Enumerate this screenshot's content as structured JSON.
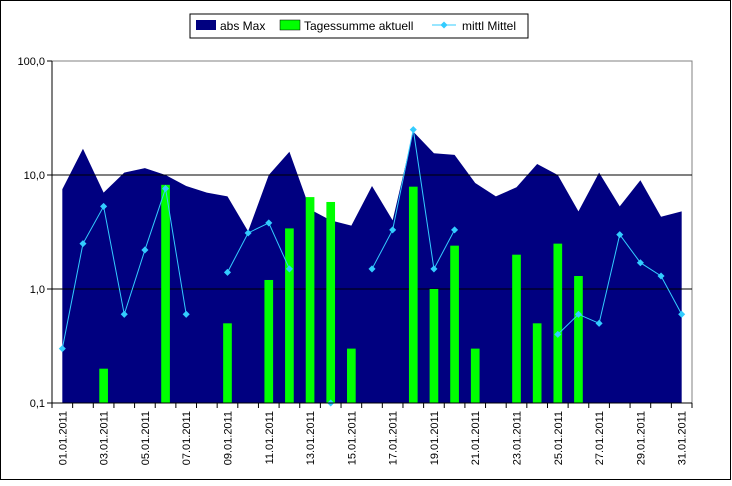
{
  "chart_data": {
    "type": "bar",
    "y_scale": "log",
    "ylim": [
      0.1,
      100
    ],
    "y_ticks": [
      {
        "value": 0.1,
        "label": "0,1"
      },
      {
        "value": 1,
        "label": "1,0"
      },
      {
        "value": 10,
        "label": "10,0"
      },
      {
        "value": 100,
        "label": "100,0"
      }
    ],
    "grid": "horizontal major lines at 1 and 10",
    "legend_position": "top-center",
    "x": [
      "01.01.2011",
      "02.01.2011",
      "03.01.2011",
      "04.01.2011",
      "05.01.2011",
      "06.01.2011",
      "07.01.2011",
      "08.01.2011",
      "09.01.2011",
      "10.01.2011",
      "11.01.2011",
      "12.01.2011",
      "13.01.2011",
      "14.01.2011",
      "15.01.2011",
      "16.01.2011",
      "17.01.2011",
      "18.01.2011",
      "19.01.2011",
      "20.01.2011",
      "21.01.2011",
      "22.01.2011",
      "23.01.2011",
      "24.01.2011",
      "25.01.2011",
      "26.01.2011",
      "27.01.2011",
      "28.01.2011",
      "29.01.2011",
      "30.01.2011",
      "31.01.2011"
    ],
    "x_tick_labels": [
      "01.01.2011",
      "03.01.2011",
      "05.01.2011",
      "07.01.2011",
      "09.01.2011",
      "11.01.2011",
      "13.01.2011",
      "15.01.2011",
      "17.01.2011",
      "19.01.2011",
      "21.01.2011",
      "23.01.2011",
      "25.01.2011",
      "27.01.2011",
      "29.01.2011",
      "31.01.2011"
    ],
    "series": [
      {
        "name": "abs Max",
        "type": "area",
        "color": "#000080",
        "values": [
          7.5,
          17,
          7,
          10.5,
          11.5,
          10,
          8,
          7,
          6.5,
          3.2,
          10,
          16,
          5,
          4,
          3.6,
          8,
          4,
          24,
          15.5,
          15,
          8.5,
          6.5,
          7.8,
          12.5,
          10,
          4.8,
          10.5,
          5.3,
          9,
          4.3,
          4.8
        ]
      },
      {
        "name": "Tagessumme aktuell",
        "type": "bar",
        "color": "#00ff00",
        "values": [
          null,
          null,
          0.2,
          null,
          null,
          8.2,
          null,
          null,
          0.5,
          null,
          1.2,
          3.4,
          6.4,
          5.8,
          0.3,
          null,
          null,
          7.9,
          1.0,
          2.4,
          0.3,
          null,
          2.0,
          0.5,
          2.5,
          1.3,
          null,
          null,
          null,
          null,
          null
        ]
      },
      {
        "name": "mittl Mittel",
        "type": "line",
        "color": "#33ccff",
        "values": [
          0.3,
          2.5,
          5.3,
          0.6,
          2.2,
          7.6,
          0.6,
          null,
          1.4,
          3.1,
          3.8,
          1.5,
          null,
          0.1,
          null,
          1.5,
          3.3,
          25,
          1.5,
          3.3,
          null,
          null,
          null,
          null,
          0.4,
          0.6,
          0.5,
          3.0,
          1.7,
          1.3,
          0.6
        ]
      }
    ]
  }
}
